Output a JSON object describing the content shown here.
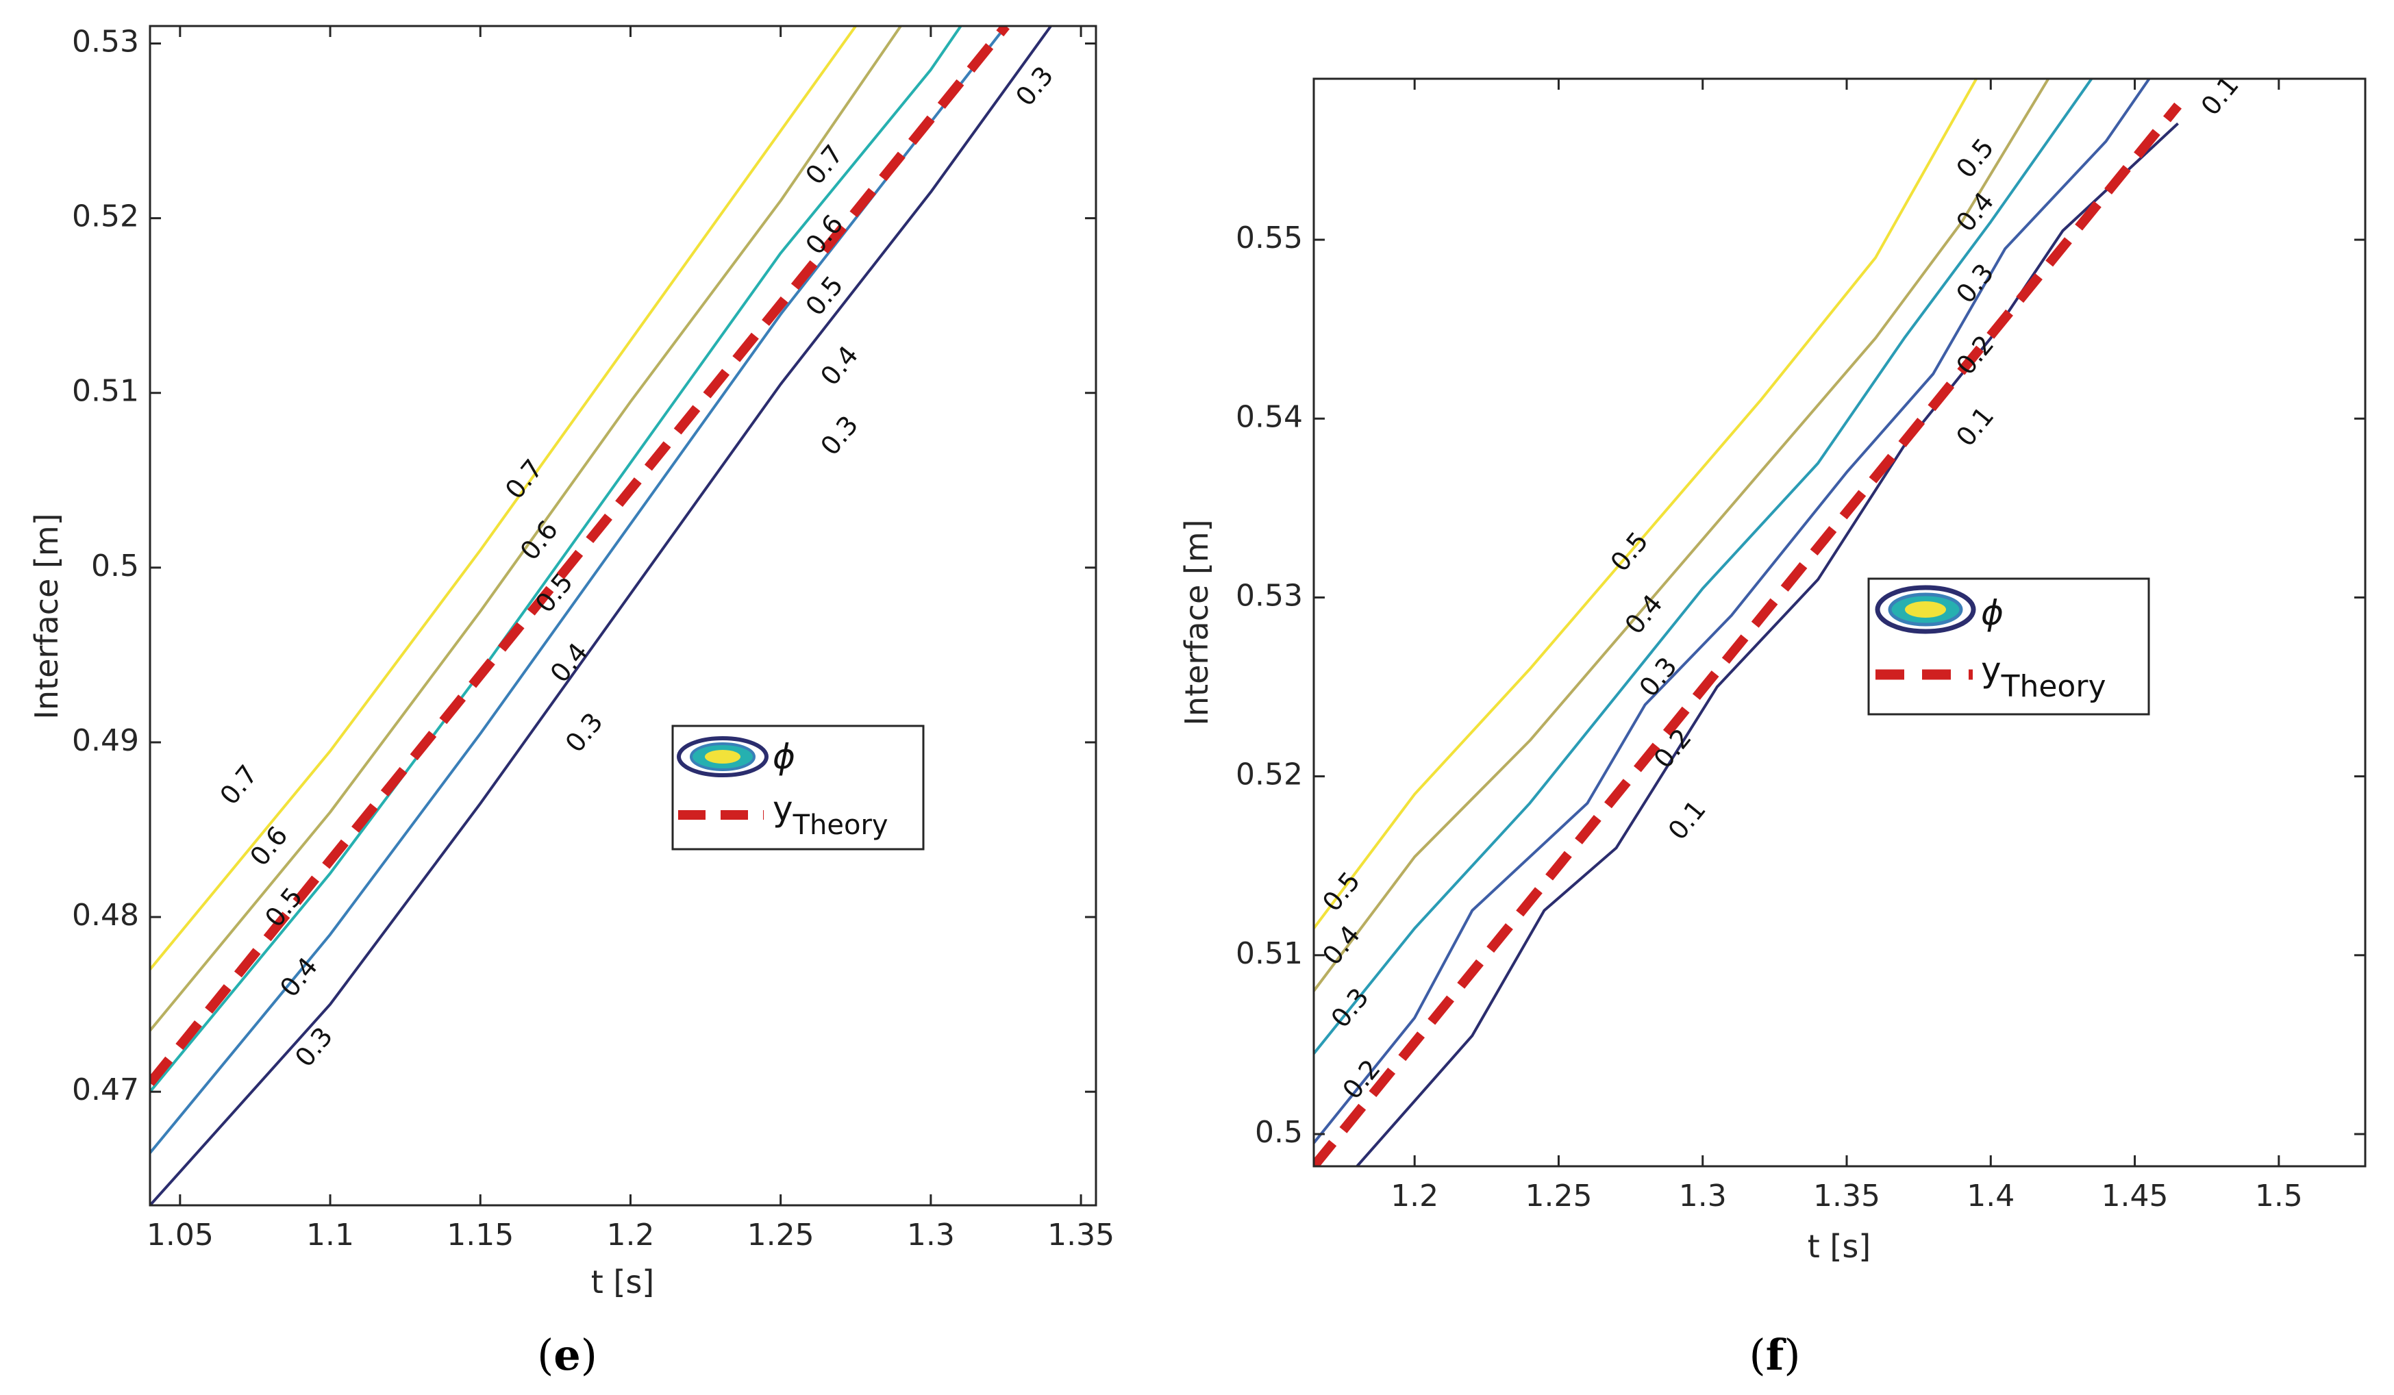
{
  "chart_data": [
    {
      "type": "contour",
      "panel_label_open": "(",
      "panel_label_letter": "e",
      "panel_label_close": ")",
      "xlabel": "t [s]",
      "ylabel": "Interface [m]",
      "xlim": [
        1.04,
        1.355
      ],
      "ylim": [
        0.4635,
        0.531
      ],
      "xticks": [
        "1.05",
        "1.1",
        "1.15",
        "1.2",
        "1.25",
        "1.3",
        "1.35"
      ],
      "xtick_values": [
        1.05,
        1.1,
        1.15,
        1.2,
        1.25,
        1.3,
        1.35
      ],
      "yticks": [
        "0.47",
        "0.48",
        "0.49",
        "0.5",
        "0.51",
        "0.52",
        "0.53"
      ],
      "ytick_values": [
        0.47,
        0.48,
        0.49,
        0.5,
        0.51,
        0.52,
        0.53
      ],
      "contours": [
        {
          "level": "0.3",
          "color": "#2b2d6e",
          "points": [
            [
              1.04,
              0.4635
            ],
            [
              1.1,
              0.475
            ],
            [
              1.15,
              0.4865
            ],
            [
              1.2,
              0.4985
            ],
            [
              1.25,
              0.5105
            ],
            [
              1.3,
              0.5215
            ],
            [
              1.34,
              0.531
            ]
          ]
        },
        {
          "level": "0.4",
          "color": "#3a7fb8",
          "points": [
            [
              1.04,
              0.4665
            ],
            [
              1.1,
              0.479
            ],
            [
              1.15,
              0.4905
            ],
            [
              1.2,
              0.5025
            ],
            [
              1.25,
              0.5145
            ],
            [
              1.3,
              0.5255
            ],
            [
              1.325,
              0.531
            ]
          ]
        },
        {
          "level": "0.5",
          "color": "#26b0b0",
          "points": [
            [
              1.04,
              0.47
            ],
            [
              1.1,
              0.4825
            ],
            [
              1.15,
              0.494
            ],
            [
              1.2,
              0.506
            ],
            [
              1.25,
              0.518
            ],
            [
              1.3,
              0.5285
            ],
            [
              1.31,
              0.531
            ]
          ]
        },
        {
          "level": "0.6",
          "color": "#b8b060",
          "points": [
            [
              1.04,
              0.4735
            ],
            [
              1.1,
              0.486
            ],
            [
              1.15,
              0.4975
            ],
            [
              1.2,
              0.5095
            ],
            [
              1.25,
              0.521
            ],
            [
              1.29,
              0.531
            ]
          ]
        },
        {
          "level": "0.7",
          "color": "#f2e23a",
          "points": [
            [
              1.04,
              0.477
            ],
            [
              1.1,
              0.4895
            ],
            [
              1.15,
              0.501
            ],
            [
              1.2,
              0.513
            ],
            [
              1.25,
              0.525
            ],
            [
              1.275,
              0.531
            ]
          ]
        }
      ],
      "contour_labels": [
        {
          "text": "0.7",
          "x": 1.07,
          "y": 0.4875
        },
        {
          "text": "0.6",
          "x": 1.08,
          "y": 0.484
        },
        {
          "text": "0.5",
          "x": 1.085,
          "y": 0.4805
        },
        {
          "text": "0.4",
          "x": 1.09,
          "y": 0.4765
        },
        {
          "text": "0.3",
          "x": 1.095,
          "y": 0.4725
        },
        {
          "text": "0.7",
          "x": 1.165,
          "y": 0.505
        },
        {
          "text": "0.6",
          "x": 1.17,
          "y": 0.5015
        },
        {
          "text": "0.5",
          "x": 1.175,
          "y": 0.4985
        },
        {
          "text": "0.4",
          "x": 1.18,
          "y": 0.4945
        },
        {
          "text": "0.3",
          "x": 1.185,
          "y": 0.4905
        },
        {
          "text": "0.7",
          "x": 1.265,
          "y": 0.523
        },
        {
          "text": "0.6",
          "x": 1.265,
          "y": 0.519
        },
        {
          "text": "0.5",
          "x": 1.265,
          "y": 0.5155
        },
        {
          "text": "0.4",
          "x": 1.27,
          "y": 0.5115
        },
        {
          "text": "0.3",
          "x": 1.27,
          "y": 0.5075
        },
        {
          "text": "0.3",
          "x": 1.335,
          "y": 0.5275
        }
      ],
      "theory": {
        "points": [
          [
            1.04,
            0.4705
          ],
          [
            1.325,
            0.531
          ]
        ]
      },
      "legend": {
        "phi_symbol": "ϕ",
        "theory_main": "y",
        "theory_sub": "Theory"
      }
    },
    {
      "type": "contour",
      "panel_label_open": "(",
      "panel_label_letter": "f",
      "panel_label_close": ")",
      "xlabel": "t [s]",
      "ylabel": "Interface [m]",
      "xlim": [
        1.165,
        1.53
      ],
      "ylim": [
        0.4982,
        0.559
      ],
      "xticks": [
        "1.2",
        "1.25",
        "1.3",
        "1.35",
        "1.4",
        "1.45",
        "1.5"
      ],
      "xtick_values": [
        1.2,
        1.25,
        1.3,
        1.35,
        1.4,
        1.45,
        1.5
      ],
      "yticks": [
        "0.5",
        "0.51",
        "0.52",
        "0.53",
        "0.54",
        "0.55"
      ],
      "ytick_values": [
        0.5,
        0.51,
        0.52,
        0.53,
        0.54,
        0.55
      ],
      "contours": [
        {
          "level": "0.1",
          "color": "#2b2d6e",
          "points": [
            [
              1.18,
              0.4982
            ],
            [
              1.22,
              0.5055
            ],
            [
              1.245,
              0.5125
            ],
            [
              1.27,
              0.516
            ],
            [
              1.305,
              0.525
            ],
            [
              1.34,
              0.531
            ],
            [
              1.37,
              0.5385
            ],
            [
              1.4,
              0.5445
            ],
            [
              1.425,
              0.5505
            ],
            [
              1.465,
              0.5565
            ]
          ]
        },
        {
          "level": "0.2",
          "color": "#3e5ea6",
          "points": [
            [
              1.165,
              0.4995
            ],
            [
              1.2,
              0.5065
            ],
            [
              1.22,
              0.5125
            ],
            [
              1.26,
              0.5185
            ],
            [
              1.28,
              0.524
            ],
            [
              1.31,
              0.529
            ],
            [
              1.35,
              0.537
            ],
            [
              1.38,
              0.5425
            ],
            [
              1.405,
              0.5495
            ],
            [
              1.44,
              0.5555
            ],
            [
              1.455,
              0.559
            ]
          ]
        },
        {
          "level": "0.3",
          "color": "#2a9cb5",
          "points": [
            [
              1.165,
              0.5045
            ],
            [
              1.2,
              0.5115
            ],
            [
              1.24,
              0.5185
            ],
            [
              1.27,
              0.5245
            ],
            [
              1.3,
              0.5305
            ],
            [
              1.34,
              0.5375
            ],
            [
              1.37,
              0.5445
            ],
            [
              1.4,
              0.551
            ],
            [
              1.435,
              0.559
            ]
          ]
        },
        {
          "level": "0.4",
          "color": "#b8ad60",
          "points": [
            [
              1.165,
              0.508
            ],
            [
              1.2,
              0.5155
            ],
            [
              1.24,
              0.522
            ],
            [
              1.28,
              0.5295
            ],
            [
              1.32,
              0.537
            ],
            [
              1.36,
              0.5445
            ],
            [
              1.39,
              0.551
            ],
            [
              1.42,
              0.559
            ]
          ]
        },
        {
          "level": "0.5",
          "color": "#f2e23a",
          "points": [
            [
              1.165,
              0.5115
            ],
            [
              1.2,
              0.519
            ],
            [
              1.24,
              0.526
            ],
            [
              1.28,
              0.5335
            ],
            [
              1.32,
              0.541
            ],
            [
              1.36,
              0.549
            ],
            [
              1.395,
              0.559
            ]
          ]
        }
      ],
      "contour_labels": [
        {
          "text": "0.5",
          "x": 1.175,
          "y": 0.5135
        },
        {
          "text": "0.4",
          "x": 1.175,
          "y": 0.5105
        },
        {
          "text": "0.3",
          "x": 1.178,
          "y": 0.507
        },
        {
          "text": "0.2",
          "x": 1.182,
          "y": 0.503
        },
        {
          "text": "0.5",
          "x": 1.275,
          "y": 0.5325
        },
        {
          "text": "0.4",
          "x": 1.28,
          "y": 0.529
        },
        {
          "text": "0.3",
          "x": 1.285,
          "y": 0.5255
        },
        {
          "text": "0.2",
          "x": 1.29,
          "y": 0.5215
        },
        {
          "text": "0.1",
          "x": 1.295,
          "y": 0.5175
        },
        {
          "text": "0.5",
          "x": 1.395,
          "y": 0.5545
        },
        {
          "text": "0.4",
          "x": 1.395,
          "y": 0.5515
        },
        {
          "text": "0.3",
          "x": 1.395,
          "y": 0.5475
        },
        {
          "text": "0.2",
          "x": 1.395,
          "y": 0.5435
        },
        {
          "text": "0.1",
          "x": 1.395,
          "y": 0.5395
        },
        {
          "text": "0.1",
          "x": 1.48,
          "y": 0.558
        }
      ],
      "theory": {
        "points": [
          [
            1.165,
            0.4982
          ],
          [
            1.465,
            0.5575
          ]
        ]
      },
      "legend": {
        "phi_symbol": "ϕ",
        "theory_main": "y",
        "theory_sub": "Theory"
      }
    }
  ]
}
